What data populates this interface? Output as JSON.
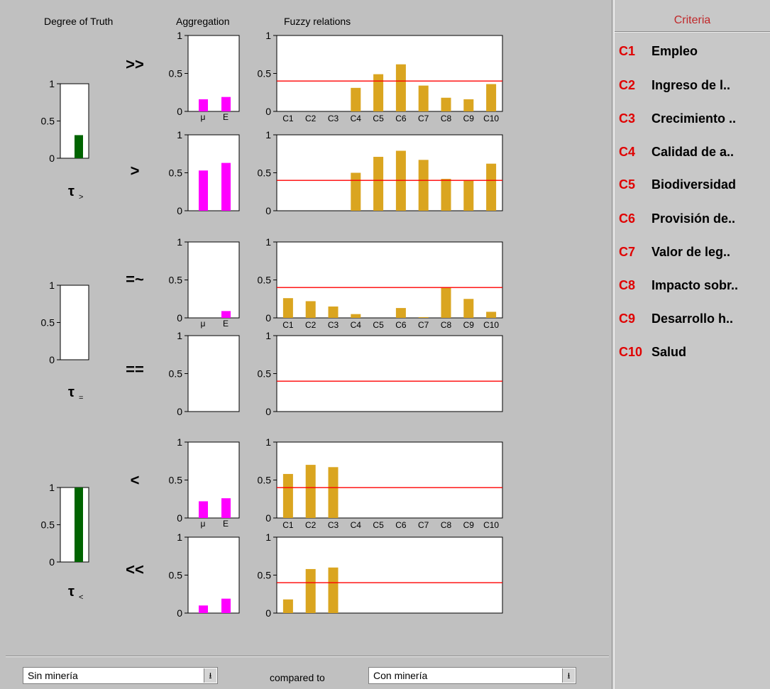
{
  "columns": {
    "degree_of_truth": "Degree of Truth",
    "aggregation": "Aggregation",
    "fuzzy_relations": "Fuzzy relations"
  },
  "criteria_panel": {
    "title": "Criteria",
    "items": [
      {
        "code": "C1",
        "name": "Empleo"
      },
      {
        "code": "C2",
        "name": "Ingreso de l.."
      },
      {
        "code": "C3",
        "name": "Crecimiento .."
      },
      {
        "code": "C4",
        "name": "Calidad de a.."
      },
      {
        "code": "C5",
        "name": "Biodiversidad"
      },
      {
        "code": "C6",
        "name": "Provisión de.."
      },
      {
        "code": "C7",
        "name": "Valor de leg.."
      },
      {
        "code": "C8",
        "name": "Impacto sobr.."
      },
      {
        "code": "C9",
        "name": "Desarrollo h.."
      },
      {
        "code": "C10",
        "name": "Salud"
      }
    ]
  },
  "footer": {
    "left_select_value": "Sin  minería",
    "compared_label": "compared to",
    "right_select_value": "Con minería",
    "dropdown_glyph": "⭳"
  },
  "colors": {
    "background": "#c0c0c0",
    "truth_bar": "#006400",
    "aggregation_bar": "#ff00ff",
    "relation_bar": "#daa520",
    "threshold_line": "#ff0000",
    "criteria_code": "#e00000",
    "criteria_title": "#c0282a"
  },
  "chart_data": [
    {
      "type": "bar",
      "name": "degree_of_truth",
      "groups": [
        {
          "label": "τ",
          "subscript": ">",
          "value": 0.31,
          "yticks": [
            "1",
            "0.5",
            "0"
          ]
        },
        {
          "label": "τ",
          "subscript": "=",
          "value": 0.0,
          "yticks": [
            "1",
            "0.5",
            "0"
          ]
        },
        {
          "label": "τ",
          "subscript": "<",
          "value": 1.0,
          "yticks": [
            "1",
            "0.5",
            "0"
          ]
        }
      ],
      "ylim": [
        0,
        1
      ]
    },
    {
      "type": "bar",
      "name": "aggregation",
      "categories": [
        "μ",
        "E"
      ],
      "relations": [
        {
          "symbol": ">>",
          "values": [
            0.16,
            0.19
          ]
        },
        {
          "symbol": ">",
          "values": [
            0.53,
            0.63
          ]
        },
        {
          "symbol": "=~",
          "values": [
            0.0,
            0.09
          ]
        },
        {
          "symbol": "==",
          "values": [
            0.0,
            0.0
          ]
        },
        {
          "symbol": "<",
          "values": [
            0.22,
            0.26
          ]
        },
        {
          "symbol": "<<",
          "values": [
            0.1,
            0.19
          ]
        }
      ],
      "yticks": [
        "1",
        "0.5",
        "0"
      ],
      "ylim": [
        0,
        1
      ]
    },
    {
      "type": "bar",
      "name": "fuzzy_relations",
      "categories": [
        "C1",
        "C2",
        "C3",
        "C4",
        "C5",
        "C6",
        "C7",
        "C8",
        "C9",
        "C10"
      ],
      "threshold": 0.4,
      "relations": [
        {
          "symbol": ">>",
          "values": [
            0,
            0,
            0,
            0.31,
            0.49,
            0.62,
            0.34,
            0.18,
            0.16,
            0.36
          ]
        },
        {
          "symbol": ">",
          "values": [
            0,
            0,
            0,
            0.5,
            0.71,
            0.79,
            0.67,
            0.42,
            0.4,
            0.62
          ]
        },
        {
          "symbol": "=~",
          "values": [
            0.26,
            0.22,
            0.15,
            0.05,
            0,
            0.13,
            0.01,
            0.4,
            0.25,
            0.08
          ]
        },
        {
          "symbol": "==",
          "values": [
            0,
            0,
            0,
            0,
            0,
            0,
            0,
            0,
            0,
            0
          ]
        },
        {
          "symbol": "<",
          "values": [
            0.58,
            0.7,
            0.67,
            0,
            0,
            0,
            0,
            0,
            0,
            0
          ]
        },
        {
          "symbol": "<<",
          "values": [
            0.18,
            0.58,
            0.6,
            0,
            0,
            0,
            0,
            0,
            0,
            0
          ]
        }
      ],
      "yticks": [
        "1",
        "0.5",
        "0"
      ],
      "ylim": [
        0,
        1
      ]
    }
  ]
}
